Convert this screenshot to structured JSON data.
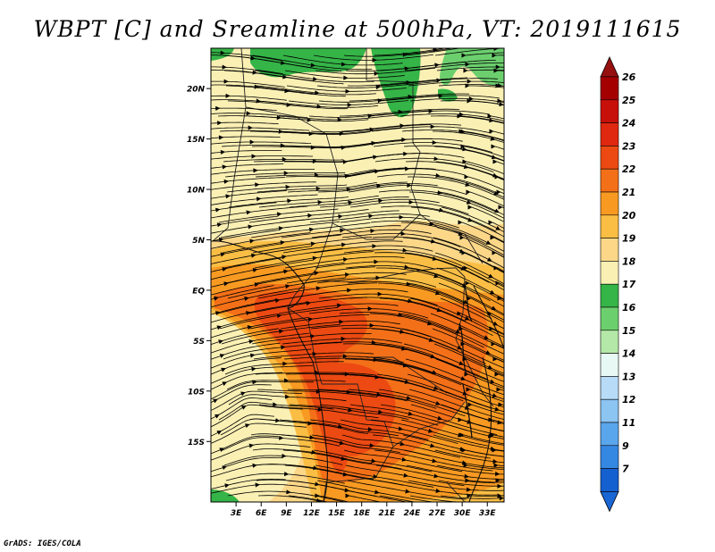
{
  "title": "WBPT [C] and Sreamline at 500hPa, VT: 2019111615",
  "credit": "GrADS: IGES/COLA",
  "map": {
    "projection": "lat-lon",
    "lon_range": [
      0,
      35
    ],
    "lat_range": [
      -21,
      24
    ],
    "lat_ticks": [
      {
        "value": 20,
        "label": "20N"
      },
      {
        "value": 15,
        "label": "15N"
      },
      {
        "value": 10,
        "label": "10N"
      },
      {
        "value": 5,
        "label": "5N"
      },
      {
        "value": 0,
        "label": "EQ"
      },
      {
        "value": -5,
        "label": "5S"
      },
      {
        "value": -10,
        "label": "10S"
      },
      {
        "value": -15,
        "label": "15S"
      }
    ],
    "lon_ticks": [
      {
        "value": 3,
        "label": "3E"
      },
      {
        "value": 6,
        "label": "6E"
      },
      {
        "value": 9,
        "label": "9E"
      },
      {
        "value": 12,
        "label": "12E"
      },
      {
        "value": 15,
        "label": "15E"
      },
      {
        "value": 18,
        "label": "18E"
      },
      {
        "value": 21,
        "label": "21E"
      },
      {
        "value": 24,
        "label": "24E"
      },
      {
        "value": 27,
        "label": "27E"
      },
      {
        "value": 30,
        "label": "30E"
      },
      {
        "value": 33,
        "label": "33E"
      }
    ]
  },
  "colorbar": {
    "labels": [
      "26",
      "25",
      "24",
      "23",
      "22",
      "21",
      "20",
      "19",
      "18",
      "17",
      "16",
      "15",
      "14",
      "13",
      "12",
      "11",
      "9",
      "7"
    ],
    "colors": [
      "#a50000",
      "#c8100a",
      "#e02810",
      "#ec4a12",
      "#f47018",
      "#f89a22",
      "#fbbe45",
      "#fcd788",
      "#fbf0b4",
      "#35b447",
      "#6ccf6e",
      "#b4e8a8",
      "#e8f8f4",
      "#b8dcf8",
      "#8cc4f2",
      "#5aa6ec",
      "#3588e2",
      "#1460d0"
    ],
    "top_arrow_color": "#961010",
    "bottom_arrow_color": "#1a66d4"
  },
  "field_colors": {
    "c18": "#fbf0b4",
    "c19": "#fcd788",
    "c20": "#fbbe45",
    "c21": "#f89a22",
    "c22": "#f47018",
    "c23": "#ec4a12",
    "c17": "#35b447",
    "c16": "#6ccf6e"
  }
}
